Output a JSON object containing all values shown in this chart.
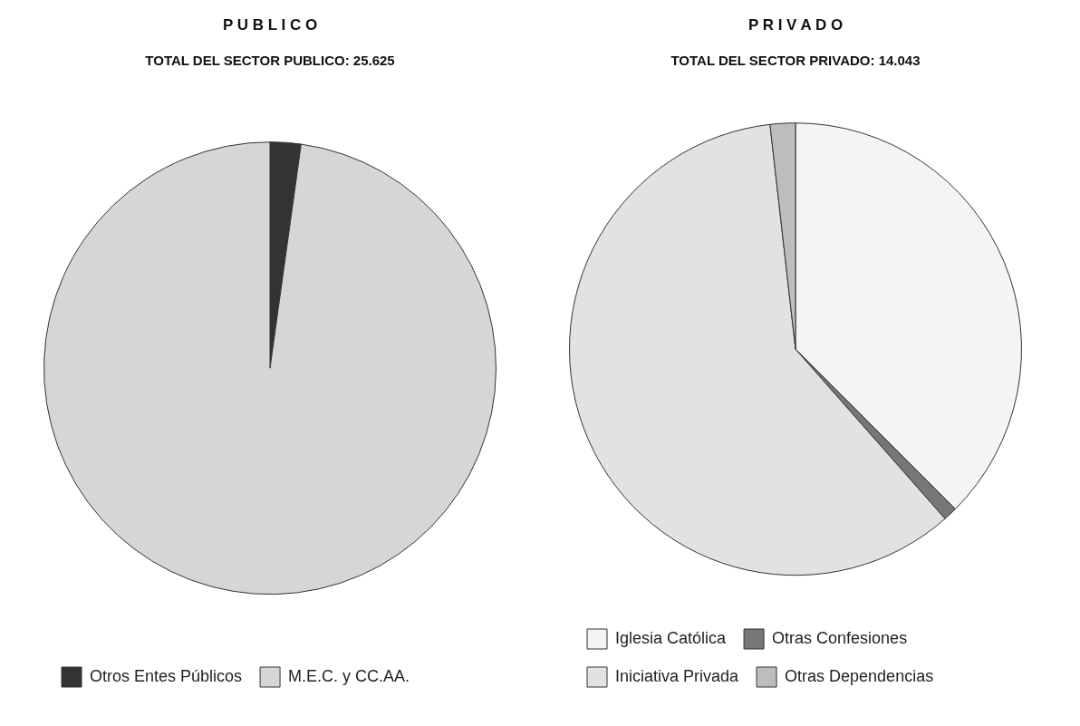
{
  "chart_data": [
    {
      "type": "pie",
      "title": "P U B L I C O",
      "subtitle": "TOTAL DEL SECTOR PUBLICO: 25.625",
      "categories": [
        "Otros Entes Públicos",
        "M.E.C. y CC.AA."
      ],
      "values": [
        2.2,
        97.8
      ],
      "colors": [
        "#333333",
        "#d6d6d6"
      ],
      "legend": "bottom"
    },
    {
      "type": "pie",
      "title": "P R I V A D O",
      "subtitle": "TOTAL DEL SECTOR PRIVADO: 14.043",
      "categories": [
        "Iglesia Católica",
        "Otras Confesiones",
        "Iniciativa Privada",
        "Otras Dependencias"
      ],
      "values": [
        37.5,
        1,
        59.7,
        1.8
      ],
      "colors": [
        "#f4f4f4",
        "#777777",
        "#e2e2e2",
        "#bdbdbd"
      ],
      "legend": "bottom"
    }
  ]
}
